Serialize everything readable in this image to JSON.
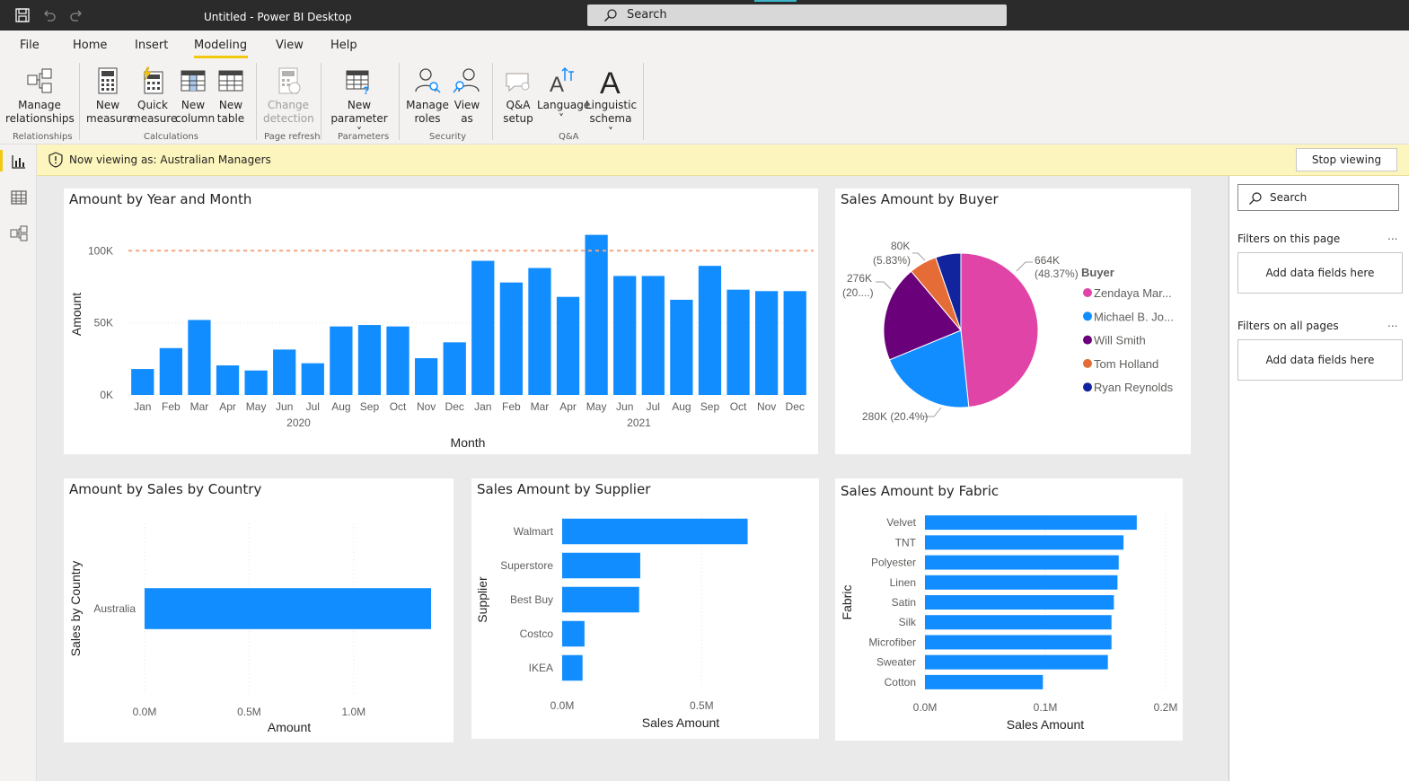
{
  "window": {
    "title": "Untitled - Power BI Desktop"
  },
  "search": {
    "placeholder": "Search"
  },
  "ribbon_tabs": [
    "File",
    "Home",
    "Insert",
    "Modeling",
    "View",
    "Help"
  ],
  "active_tab": "Modeling",
  "ribbon": {
    "manage_relationships": [
      "Manage",
      "relationships"
    ],
    "new_measure": [
      "New",
      "measure"
    ],
    "quick_measure": [
      "Quick",
      "measure"
    ],
    "new_column": [
      "New",
      "column"
    ],
    "new_table": [
      "New",
      "table"
    ],
    "change_detection": [
      "Change",
      "detection"
    ],
    "new_parameter": [
      "New",
      "parameter ˅"
    ],
    "manage_roles": [
      "Manage",
      "roles"
    ],
    "view_as": [
      "View",
      "as"
    ],
    "qa_setup": [
      "Q&A",
      "setup"
    ],
    "language": [
      "Language",
      "˅"
    ],
    "linguistic_schema": [
      "Linguistic",
      "schema ˅"
    ],
    "groups": {
      "relationships": "Relationships",
      "calculations": "Calculations",
      "page_refresh": "Page refresh",
      "parameters": "Parameters",
      "security": "Security",
      "qa": "Q&A"
    }
  },
  "banner": {
    "text": "Now viewing as: Australian Managers",
    "stop_label": "Stop viewing"
  },
  "filters": {
    "search_placeholder": "Search",
    "on_this_page": "Filters on this page",
    "on_all_pages": "Filters on all pages",
    "add_fields": "Add data fields here",
    "more": "..."
  },
  "colors": {
    "bar": "#118dff",
    "refline": "#f4a57c",
    "accent": "#f2c811",
    "banner": "#fcf5bd"
  },
  "chart_data": [
    {
      "id": "amount_by_year_month",
      "type": "bar",
      "title": "Amount by Year and Month",
      "xlabel": "Month",
      "ylabel": "Amount",
      "years": [
        "2020",
        "2021"
      ],
      "categories": [
        "Jan",
        "Feb",
        "Mar",
        "Apr",
        "May",
        "Jun",
        "Jul",
        "Aug",
        "Sep",
        "Oct",
        "Nov",
        "Dec",
        "Jan",
        "Feb",
        "Mar",
        "Apr",
        "May",
        "Jun",
        "Jul",
        "Aug",
        "Sep",
        "Oct",
        "Nov",
        "Dec"
      ],
      "values": [
        18000,
        32500,
        52000,
        20500,
        17000,
        31500,
        22000,
        47500,
        48500,
        47500,
        25500,
        36500,
        93000,
        78000,
        88000,
        68000,
        111000,
        82500,
        82500,
        66000,
        89500,
        73000,
        72000,
        72000
      ],
      "yticks": [
        "0K",
        "50K",
        "100K"
      ],
      "ylim": [
        0,
        112000
      ],
      "reference_line": 100000
    },
    {
      "id": "sales_by_buyer",
      "type": "pie",
      "title": "Sales Amount by Buyer",
      "legend_title": "Buyer",
      "labels": [
        "Zendaya Mar...",
        "Michael B. Jo...",
        "Will Smith",
        "Tom Holland",
        "Ryan Reynolds"
      ],
      "values": [
        48.37,
        20.4,
        20.1,
        5.83,
        5.3
      ],
      "colors": [
        "#e044a7",
        "#118dff",
        "#6b007b",
        "#e66c37",
        "#12239e"
      ],
      "data_labels": [
        {
          "text1": "664K",
          "text2": "(48.37%)"
        },
        {
          "text1": "280K (20.4%)",
          "text2": ""
        },
        {
          "text1": "276K",
          "text2": "(20....)"
        },
        {
          "text1": "80K",
          "text2": "(5.83%)"
        }
      ]
    },
    {
      "id": "amount_by_country",
      "type": "bar",
      "orientation": "horizontal",
      "title": "Amount by Sales by Country",
      "xlabel": "Amount",
      "ylabel": "Sales by Country",
      "categories": [
        "Australia"
      ],
      "values": [
        1.37
      ],
      "xticks": [
        "0.0M",
        "0.5M",
        "1.0M"
      ],
      "xlim": [
        0,
        1.4
      ]
    },
    {
      "id": "sales_by_supplier",
      "type": "bar",
      "orientation": "horizontal",
      "title": "Sales Amount by Supplier",
      "xlabel": "Sales Amount",
      "ylabel": "Supplier",
      "categories": [
        "Walmart",
        "Superstore",
        "Best Buy",
        "Costco",
        "IKEA"
      ],
      "values": [
        0.665,
        0.28,
        0.276,
        0.08,
        0.073
      ],
      "xticks": [
        "0.0M",
        "0.5M"
      ],
      "xlim": [
        0,
        0.85
      ]
    },
    {
      "id": "sales_by_fabric",
      "type": "bar",
      "orientation": "horizontal",
      "title": "Sales Amount by Fabric",
      "xlabel": "Sales Amount",
      "ylabel": "Fabric",
      "categories": [
        "Velvet",
        "TNT",
        "Polyester",
        "Linen",
        "Satin",
        "Silk",
        "Microfiber",
        "Sweater",
        "Cotton"
      ],
      "values": [
        0.176,
        0.165,
        0.161,
        0.16,
        0.157,
        0.155,
        0.155,
        0.152,
        0.098
      ],
      "xticks": [
        "0.0M",
        "0.1M",
        "0.2M"
      ],
      "xlim": [
        0,
        0.2
      ]
    }
  ]
}
